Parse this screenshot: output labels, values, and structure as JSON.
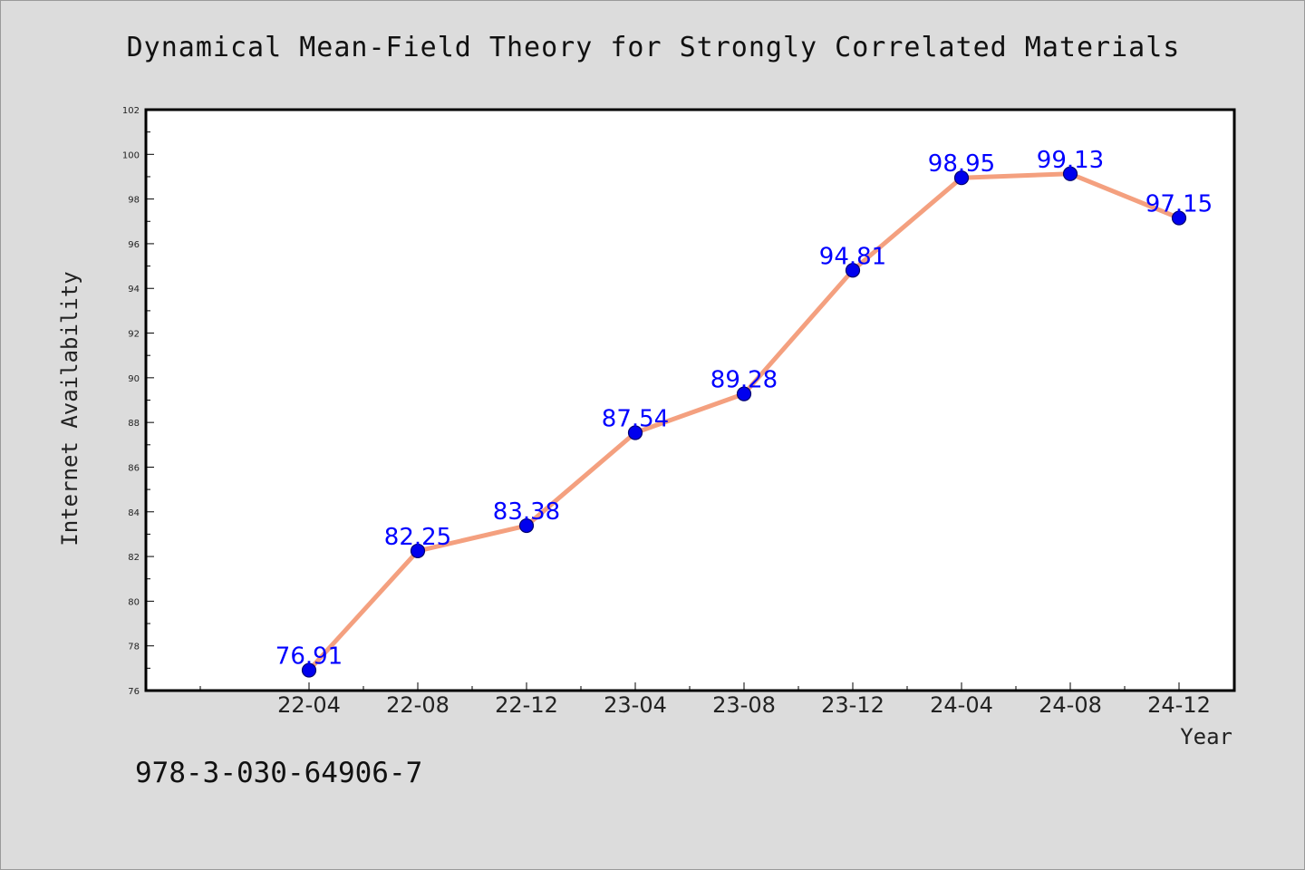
{
  "chart_data": {
    "type": "line",
    "title": "Dynamical Mean-Field Theory for Strongly Correlated Materials",
    "xlabel": "Year",
    "ylabel": "Internet Availability",
    "categories": [
      "22-04",
      "22-08",
      "22-12",
      "23-04",
      "23-08",
      "23-12",
      "24-04",
      "24-08",
      "24-12"
    ],
    "series": [
      {
        "values": [
          76.91,
          82.25,
          83.38,
          87.54,
          89.28,
          94.81,
          98.95,
          99.13,
          97.15
        ],
        "line_color": "#f4a07f",
        "marker_color": "#0000ee",
        "label_color": "#0000ff"
      }
    ],
    "value_labels": [
      "76.91",
      "82.25",
      "83.38",
      "87.54",
      "89.28",
      "94.81",
      "98.95",
      "99.13",
      "97.15"
    ],
    "ylim": [
      76,
      102
    ],
    "yticks": [
      "76",
      "78",
      "80",
      "82",
      "84",
      "86",
      "88",
      "90",
      "92",
      "94",
      "96",
      "98",
      "100",
      "102"
    ],
    "grid": false,
    "legend": "none"
  },
  "footer": {
    "isbn": "978-3-030-64906-7"
  }
}
